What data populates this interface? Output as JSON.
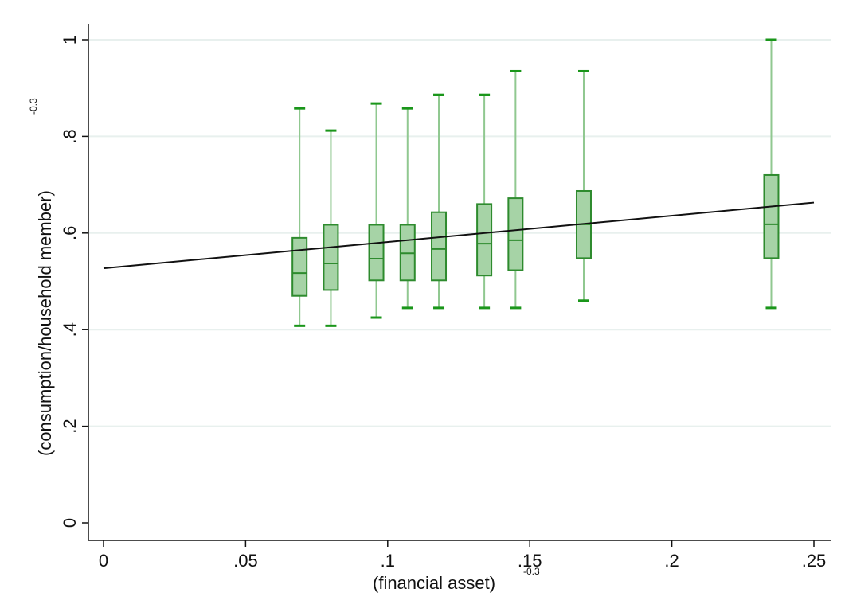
{
  "chart_data": {
    "type": "box",
    "xlabel": "(financial asset)",
    "xlabel_superscript": "-0.3",
    "ylabel": "(consumption/household member)",
    "ylabel_superscript": "-0.3",
    "xlim": [
      0,
      0.25
    ],
    "ylim": [
      0,
      1
    ],
    "x_ticks": [
      0,
      0.05,
      0.1,
      0.15,
      0.2,
      0.25
    ],
    "x_tick_labels": [
      "0",
      ".05",
      ".1",
      ".15",
      ".2",
      ".25"
    ],
    "y_ticks": [
      0,
      0.2,
      0.4,
      0.6,
      0.8,
      1
    ],
    "y_tick_labels": [
      "0",
      ".2",
      ".4",
      ".6",
      ".8",
      "1"
    ],
    "grid": "horizontal",
    "boxes": [
      {
        "x": 0.069,
        "min": 0.408,
        "q1": 0.47,
        "median": 0.517,
        "q3": 0.59,
        "max": 0.858
      },
      {
        "x": 0.08,
        "min": 0.408,
        "q1": 0.482,
        "median": 0.537,
        "q3": 0.617,
        "max": 0.812
      },
      {
        "x": 0.096,
        "min": 0.425,
        "q1": 0.502,
        "median": 0.547,
        "q3": 0.617,
        "max": 0.868
      },
      {
        "x": 0.107,
        "min": 0.445,
        "q1": 0.502,
        "median": 0.558,
        "q3": 0.617,
        "max": 0.858
      },
      {
        "x": 0.118,
        "min": 0.445,
        "q1": 0.502,
        "median": 0.567,
        "q3": 0.643,
        "max": 0.886
      },
      {
        "x": 0.134,
        "min": 0.445,
        "q1": 0.512,
        "median": 0.578,
        "q3": 0.66,
        "max": 0.886
      },
      {
        "x": 0.145,
        "min": 0.445,
        "q1": 0.523,
        "median": 0.585,
        "q3": 0.672,
        "max": 0.935
      },
      {
        "x": 0.169,
        "min": 0.46,
        "q1": 0.548,
        "median": 0.618,
        "q3": 0.687,
        "max": 0.935
      },
      {
        "x": 0.235,
        "min": 0.445,
        "q1": 0.548,
        "median": 0.618,
        "q3": 0.72,
        "max": 1.0
      }
    ],
    "fit_line": {
      "x": [
        0,
        0.25
      ],
      "y": [
        0.527,
        0.663
      ]
    },
    "colors": {
      "box_fill": "#a6d3a6",
      "box_stroke": "#2e8b2e",
      "whisker": "#90c890",
      "cap": "#1a961a",
      "fit_line": "#111111",
      "grid": "#e8f0ee"
    }
  }
}
